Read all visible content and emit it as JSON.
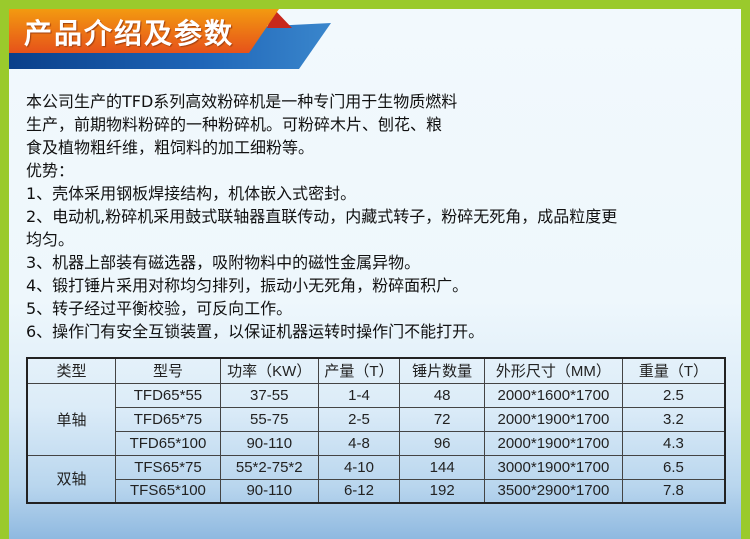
{
  "header": {
    "title": "产品介绍及参数",
    "colors": {
      "orange": "#ee6a10",
      "blue": "#1f66b8",
      "green": "#9aca2c"
    }
  },
  "intro": [
    "本公司生产的TFD系列高效粉碎机是一种专门用于生物质燃料",
    "生产，前期物料粉碎的一种粉碎机。可粉碎木片、刨花、粮",
    "食及植物粗纤维，粗饲料的加工细粉等。",
    "优势：",
    "1、壳体采用钢板焊接结构，机体嵌入式密封。",
    "2、电动机,粉碎机采用鼓式联轴器直联传动，内藏式转子，粉碎无死角，成品粒度更",
    "均匀。",
    "3、机器上部装有磁选器，吸附物料中的磁性金属异物。",
    "4、锻打锤片采用对称均匀排列，振动小无死角，粉碎面积广。",
    "5、转子经过平衡校验，可反向工作。",
    "6、操作门有安全互锁装置，以保证机器运转时操作门不能打开。"
  ],
  "table": {
    "headers": [
      "类型",
      "型号",
      "功率（KW）",
      "产量（T）",
      "锤片数量",
      "外形尺寸（MM）",
      "重量（T）"
    ],
    "groups": [
      "单轴",
      "双轴"
    ],
    "rows": [
      [
        "TFD65*55",
        "37-55",
        "1-4",
        "48",
        "2000*1600*1700",
        "2.5"
      ],
      [
        "TFD65*75",
        "55-75",
        "2-5",
        "72",
        "2000*1900*1700",
        "3.2"
      ],
      [
        "TFD65*100",
        "90-110",
        "4-8",
        "96",
        "2000*1900*1700",
        "4.3"
      ],
      [
        "TFS65*75",
        "55*2-75*2",
        "4-10",
        "144",
        "3000*1900*1700",
        "6.5"
      ],
      [
        "TFS65*100",
        "90-110",
        "6-12",
        "192",
        "3500*2900*1700",
        "7.8"
      ]
    ]
  }
}
